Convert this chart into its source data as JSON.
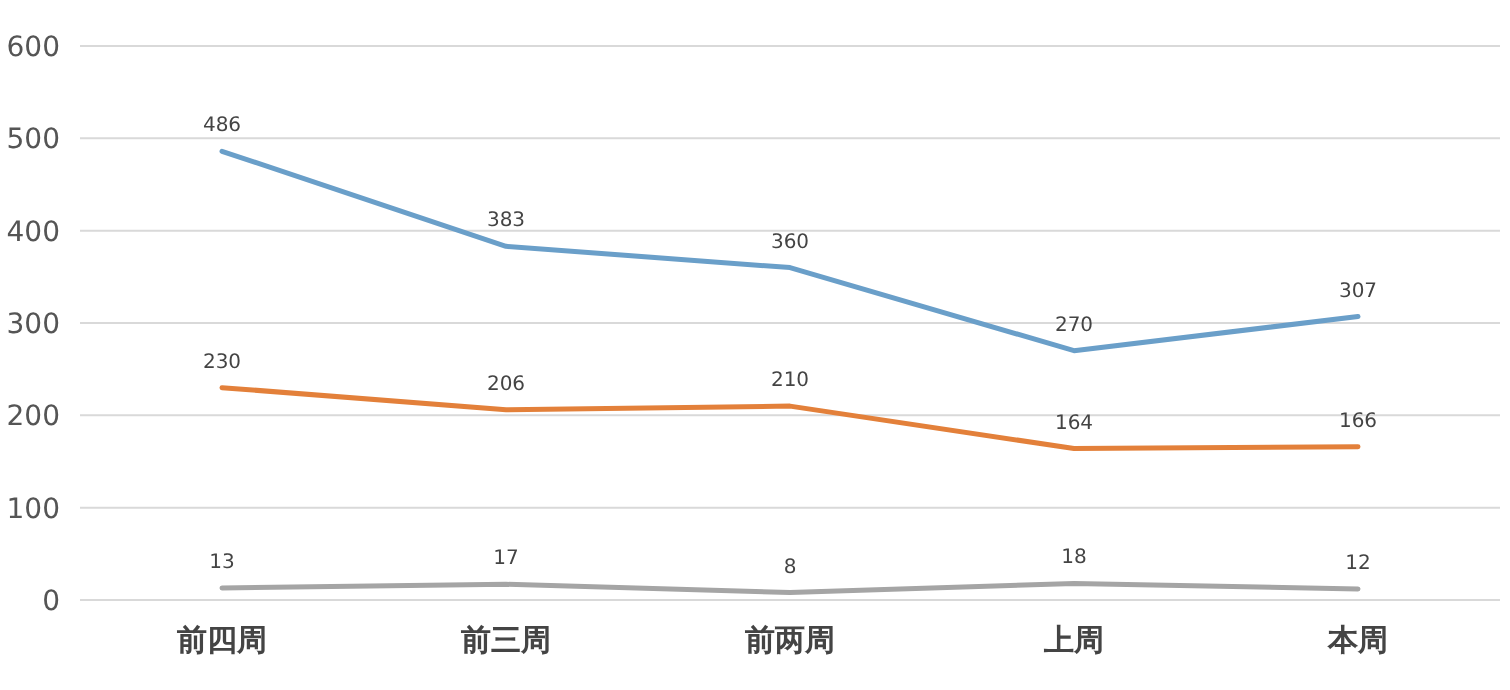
{
  "chart_data": {
    "type": "line",
    "categories": [
      "前四周",
      "前三周",
      "前两周",
      "上周",
      "本周"
    ],
    "series": [
      {
        "color": "#6a9fc9",
        "values": [
          486,
          383,
          360,
          270,
          307
        ]
      },
      {
        "color": "#e3803a",
        "values": [
          230,
          206,
          210,
          164,
          166
        ]
      },
      {
        "color": "#a5a5a5",
        "values": [
          13,
          17,
          8,
          18,
          12
        ]
      }
    ],
    "ylim": [
      0,
      600
    ],
    "yticks": [
      0,
      100,
      200,
      300,
      400,
      500,
      600
    ],
    "grid": "y",
    "data_labels": true,
    "marker": "none",
    "line_style": "solid"
  }
}
